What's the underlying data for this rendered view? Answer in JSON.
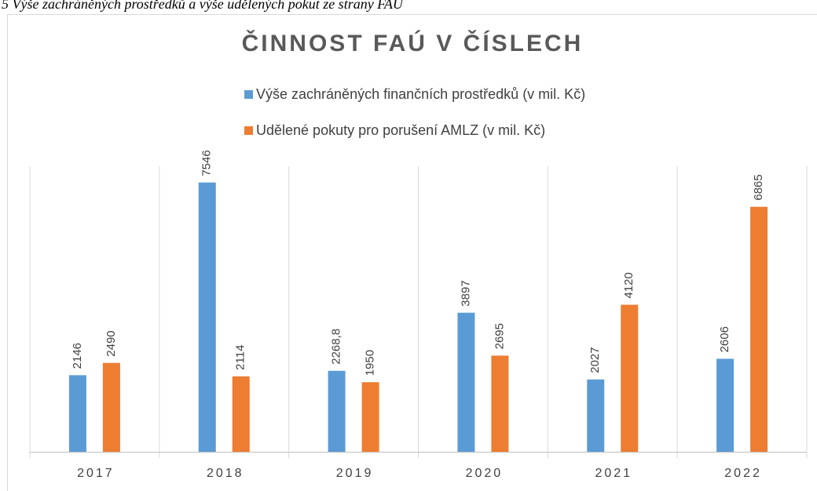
{
  "caption": "5 Výše zachráněných prostředků a výše udělených pokut ze strany FAÚ",
  "chart_data": {
    "type": "bar",
    "title": "ČINNOST FAÚ V ČÍSLECH",
    "categories": [
      "2017",
      "2018",
      "2019",
      "2020",
      "2021",
      "2022"
    ],
    "series": [
      {
        "name": "Výše zachráněných finančních prostředků (v mil. Kč)",
        "color": "#5b9bd5",
        "values": [
          2146,
          7546,
          2268.8,
          3897,
          2027,
          2606
        ],
        "value_labels": [
          "2146",
          "7546",
          "2268,8",
          "3897",
          "2027",
          "2606"
        ]
      },
      {
        "name": "Udělené pokuty pro porušení AMLZ (v mil. Kč)",
        "color": "#ed7d31",
        "values": [
          2490,
          2114,
          1950,
          2695,
          4120,
          6865
        ]
      }
    ],
    "ylim": [
      0,
      8000
    ],
    "legend": "top"
  }
}
